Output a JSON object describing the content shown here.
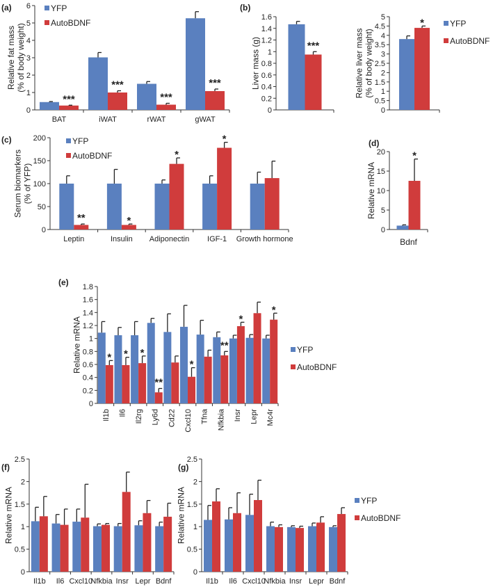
{
  "colors": {
    "YFP": "#5a80bf",
    "AutoBDNF": "#d03c3c",
    "error": "#222222",
    "axis": "#333333"
  },
  "chart_data": [
    {
      "id": "a",
      "panel_label": "(a)",
      "type": "bar",
      "ylabel": [
        "Relative fat mass",
        "(% of body weight)"
      ],
      "ylim": [
        0,
        6
      ],
      "yticks": [
        0,
        1,
        2,
        3,
        4,
        5,
        6
      ],
      "categories": [
        "BAT",
        "iWAT",
        "rWAT",
        "gWAT"
      ],
      "legend": [
        "YFP",
        "AutoBDNF"
      ],
      "legend_position": "top-left",
      "series": [
        {
          "name": "YFP",
          "values": [
            0.45,
            3.02,
            1.5,
            5.27
          ],
          "errors": [
            0.03,
            0.28,
            0.13,
            0.38
          ]
        },
        {
          "name": "AutoBDNF",
          "values": [
            0.25,
            1.0,
            0.3,
            1.08
          ],
          "errors": [
            0.02,
            0.1,
            0.08,
            0.12
          ]
        }
      ],
      "significance": [
        "***",
        "***",
        "***",
        "***"
      ]
    },
    {
      "id": "b1",
      "panel_label": "(b)",
      "type": "bar",
      "ylabel": [
        "Liver mass (g)"
      ],
      "ylim": [
        0,
        1.6
      ],
      "yticks": [
        0,
        0.2,
        0.4,
        0.6,
        0.8,
        1,
        1.2,
        1.4,
        1.6
      ],
      "categories": [
        ""
      ],
      "legend": [],
      "series": [
        {
          "name": "YFP",
          "values": [
            1.47
          ],
          "errors": [
            0.05
          ]
        },
        {
          "name": "AutoBDNF",
          "values": [
            0.95
          ],
          "errors": [
            0.05
          ]
        }
      ],
      "significance": [
        "***"
      ]
    },
    {
      "id": "b2",
      "panel_label": "",
      "type": "bar",
      "ylabel": [
        "Relative liver mass",
        "(% of body weight)"
      ],
      "ylim": [
        0,
        5
      ],
      "yticks": [
        0,
        0.5,
        1,
        1.5,
        2,
        2.5,
        3,
        3.5,
        4,
        4.5,
        5
      ],
      "categories": [
        ""
      ],
      "legend": [
        "YFP",
        "AutoBDNF"
      ],
      "legend_position": "right",
      "series": [
        {
          "name": "YFP",
          "values": [
            3.8
          ],
          "errors": [
            0.17
          ]
        },
        {
          "name": "AutoBDNF",
          "values": [
            4.4
          ],
          "errors": [
            0.1
          ]
        }
      ],
      "significance": [
        "*"
      ]
    },
    {
      "id": "c",
      "panel_label": "(c)",
      "type": "bar",
      "ylabel": [
        "Serum biomarkers",
        "(% of YFP)"
      ],
      "ylim": [
        0,
        200
      ],
      "yticks": [
        0,
        50,
        100,
        150,
        200
      ],
      "categories": [
        "Leptin",
        "Insulin",
        "Adiponectin",
        "IGF-1",
        "Growth hormone"
      ],
      "legend": [
        "YFP",
        "AutoBDNF"
      ],
      "legend_position": "top-left",
      "series": [
        {
          "name": "YFP",
          "values": [
            100,
            100,
            100,
            100,
            100
          ],
          "errors": [
            17,
            31,
            8,
            17,
            25
          ]
        },
        {
          "name": "AutoBDNF",
          "values": [
            10,
            10,
            143,
            178,
            112
          ],
          "errors": [
            2,
            2,
            13,
            12,
            37
          ]
        }
      ],
      "significance": [
        "**",
        "*",
        "*",
        "*",
        ""
      ]
    },
    {
      "id": "d",
      "panel_label": "(d)",
      "type": "bar",
      "ylabel": [
        "Relative mRNA"
      ],
      "ylim": [
        0,
        20
      ],
      "yticks": [
        0,
        5,
        10,
        15,
        20
      ],
      "categories": [
        ""
      ],
      "xlabel": "Bdnf",
      "legend": [],
      "series": [
        {
          "name": "YFP",
          "values": [
            1.0
          ],
          "errors": [
            0.2
          ]
        },
        {
          "name": "AutoBDNF",
          "values": [
            12.5
          ],
          "errors": [
            5.6
          ]
        }
      ],
      "significance": [
        "*"
      ]
    },
    {
      "id": "e",
      "panel_label": "(e)",
      "type": "bar",
      "ylabel": [
        "Relative mRNA"
      ],
      "ylim": [
        0,
        1.8
      ],
      "yticks": [
        0,
        0.2,
        0.4,
        0.6,
        0.8,
        1,
        1.2,
        1.4,
        1.6,
        1.8
      ],
      "categories": [
        "Il1b",
        "Il6",
        "Il2rg",
        "Ly6d",
        "Cd22",
        "Cxcl10",
        "Tfna",
        "Nfkbia",
        "Insr",
        "Lepr",
        "Mc4r"
      ],
      "legend": [
        "YFP",
        "AutoBDNF"
      ],
      "legend_position": "right",
      "series": [
        {
          "name": "YFP",
          "values": [
            1.09,
            1.05,
            1.05,
            1.24,
            1.1,
            1.18,
            1.06,
            1.02,
            1.0,
            1.01,
            1.0
          ],
          "errors": [
            0.17,
            0.12,
            0.21,
            0.07,
            0.28,
            0.33,
            0.22,
            0.08,
            0.05,
            0.05,
            0.05
          ]
        },
        {
          "name": "AutoBDNF",
          "values": [
            0.59,
            0.59,
            0.62,
            0.17,
            0.63,
            0.41,
            0.72,
            0.74,
            1.19,
            1.39,
            1.29
          ],
          "errors": [
            0.07,
            0.12,
            0.11,
            0.06,
            0.1,
            0.14,
            0.1,
            0.06,
            0.06,
            0.17,
            0.1
          ]
        }
      ],
      "significance": [
        "*",
        "*",
        "*",
        "**",
        "",
        "*",
        "",
        "**",
        "*",
        "",
        "*"
      ]
    },
    {
      "id": "f",
      "panel_label": "(f)",
      "type": "bar",
      "ylabel": [
        "Relative mRNA"
      ],
      "ylim": [
        0,
        2.5
      ],
      "yticks": [
        0,
        0.5,
        1,
        1.5,
        2,
        2.5
      ],
      "categories": [
        "Il1b",
        "Il6",
        "Cxcl10",
        "Nfkbia",
        "Insr",
        "Lepr",
        "Bdnf"
      ],
      "legend": [],
      "series": [
        {
          "name": "YFP",
          "values": [
            1.12,
            1.07,
            1.11,
            1.01,
            1.01,
            1.03,
            1.01
          ],
          "errors": [
            0.31,
            0.2,
            0.28,
            0.05,
            0.06,
            0.1,
            0.09
          ]
        },
        {
          "name": "AutoBDNF",
          "values": [
            1.23,
            1.04,
            1.2,
            1.04,
            1.77,
            1.3,
            1.22
          ],
          "errors": [
            0.44,
            0.35,
            0.74,
            0.03,
            0.44,
            0.28,
            0.3
          ]
        }
      ],
      "significance": []
    },
    {
      "id": "g",
      "panel_label": "(g)",
      "type": "bar",
      "ylabel": [
        "Relative mRNA"
      ],
      "ylim": [
        0,
        2.5
      ],
      "yticks": [
        0,
        0.5,
        1,
        1.5,
        2,
        2.5
      ],
      "categories": [
        "Il1b",
        "Il6",
        "Cxcl10",
        "Nfkbia",
        "Insr",
        "Lepr",
        "Bdnf"
      ],
      "legend": [
        "YFP",
        "AutoBDNF"
      ],
      "legend_position": "right",
      "series": [
        {
          "name": "YFP",
          "values": [
            1.15,
            1.16,
            1.26,
            1.01,
            0.99,
            1.01,
            0.99
          ],
          "errors": [
            0.32,
            0.26,
            0.46,
            0.09,
            0.03,
            0.07,
            0.03
          ]
        },
        {
          "name": "AutoBDNF",
          "values": [
            1.56,
            1.3,
            1.59,
            0.99,
            0.97,
            1.09,
            1.28
          ],
          "errors": [
            0.28,
            0.45,
            0.44,
            0.05,
            0.04,
            0.13,
            0.14
          ]
        }
      ],
      "significance": []
    }
  ]
}
